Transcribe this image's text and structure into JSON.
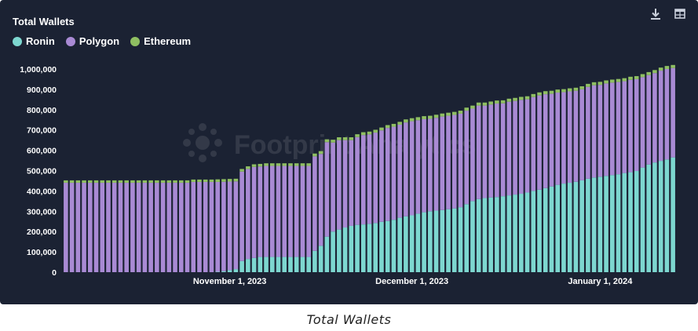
{
  "chart_data": {
    "type": "bar",
    "stacked": true,
    "title": "Total Wallets",
    "xlabel": "",
    "ylabel": "",
    "ylim": [
      0,
      1000000
    ],
    "yticks": [
      "0",
      "100,000",
      "200,000",
      "300,000",
      "400,000",
      "500,000",
      "600,000",
      "700,000",
      "800,000",
      "900,000",
      "1,000,000"
    ],
    "xticks": [
      {
        "label": "November 1, 2023",
        "index": 27
      },
      {
        "label": "December 1, 2023",
        "index": 57
      },
      {
        "label": "January 1, 2024",
        "index": 88
      }
    ],
    "legend_position": "top-left",
    "colors": {
      "Ronin": "#7dd7d0",
      "Polygon": "#a98ad4",
      "Ethereum": "#8fbf62"
    },
    "series": [
      {
        "name": "Ronin",
        "values": [
          0,
          0,
          0,
          0,
          0,
          0,
          0,
          0,
          0,
          0,
          0,
          0,
          0,
          0,
          0,
          0,
          0,
          0,
          0,
          0,
          0,
          0,
          0,
          0,
          0,
          2000,
          5000,
          10000,
          15000,
          55000,
          65000,
          70000,
          75000,
          75000,
          75000,
          75000,
          75000,
          75000,
          75000,
          75000,
          75000,
          105000,
          130000,
          175000,
          200000,
          210000,
          220000,
          228000,
          233000,
          235000,
          238000,
          242000,
          248000,
          252000,
          258000,
          268000,
          275000,
          280000,
          288000,
          295000,
          300000,
          303000,
          306000,
          310000,
          314000,
          320000,
          335000,
          350000,
          360000,
          365000,
          368000,
          370000,
          374000,
          378000,
          382000,
          386000,
          392000,
          400000,
          406000,
          414000,
          422000,
          430000,
          436000,
          440000,
          445000,
          452000,
          460000,
          466000,
          470000,
          474000,
          478000,
          482000,
          488000,
          492000,
          498000,
          515000,
          530000,
          540000,
          548000,
          555000,
          565000
        ]
      },
      {
        "name": "Polygon",
        "values": [
          440000,
          440000,
          440000,
          440000,
          440000,
          440000,
          440000,
          440000,
          440000,
          440000,
          440000,
          440000,
          440000,
          440000,
          440000,
          440000,
          440000,
          440000,
          440000,
          440000,
          440000,
          444000,
          444000,
          444000,
          444000,
          442000,
          440000,
          436000,
          432000,
          440000,
          443000,
          448000,
          445000,
          448000,
          448000,
          448000,
          448000,
          448000,
          448000,
          448000,
          448000,
          465000,
          452000,
          465000,
          438000,
          440000,
          430000,
          422000,
          432000,
          440000,
          440000,
          445000,
          450000,
          458000,
          458000,
          458000,
          462000,
          463000,
          460000,
          458000,
          455000,
          457000,
          460000,
          460000,
          460000,
          460000,
          460000,
          455000,
          460000,
          455000,
          457000,
          460000,
          457000,
          461000,
          461000,
          462000,
          459000,
          462000,
          464000,
          462000,
          456000,
          454000,
          450000,
          450000,
          448000,
          448000,
          452000,
          454000,
          452000,
          455000,
          455000,
          454000,
          452000,
          455000,
          452000,
          445000,
          440000,
          440000,
          444000,
          445000,
          440000
        ]
      },
      {
        "name": "Ethereum",
        "values": [
          12000,
          12000,
          12000,
          12000,
          12000,
          12000,
          12000,
          12000,
          12000,
          12000,
          12000,
          12000,
          12000,
          12000,
          12000,
          12000,
          12000,
          12000,
          12000,
          12000,
          12000,
          12000,
          12000,
          12000,
          12000,
          13000,
          13000,
          13000,
          13000,
          13000,
          13000,
          13000,
          13000,
          13000,
          13000,
          13000,
          13000,
          13000,
          13000,
          13000,
          13000,
          14000,
          14000,
          14000,
          14000,
          14000,
          14000,
          14000,
          14000,
          14000,
          14000,
          14000,
          14000,
          14000,
          14000,
          14000,
          15000,
          15000,
          15000,
          15000,
          15000,
          15000,
          15000,
          15000,
          15000,
          15000,
          15000,
          15000,
          15000,
          15000,
          15000,
          15000,
          15000,
          15000,
          15000,
          15000,
          15000,
          15000,
          15000,
          15000,
          15000,
          15000,
          15000,
          15000,
          15000,
          15000,
          15000,
          15000,
          15000,
          15000,
          15000,
          15000,
          15000,
          15000,
          15000,
          15000,
          15000,
          15000,
          15000,
          15000,
          15000
        ]
      }
    ]
  },
  "watermark": "Footprint Analytics",
  "toolbar": {
    "download_icon": "download-icon",
    "table_icon": "table-icon"
  },
  "caption": "Total Wallets"
}
